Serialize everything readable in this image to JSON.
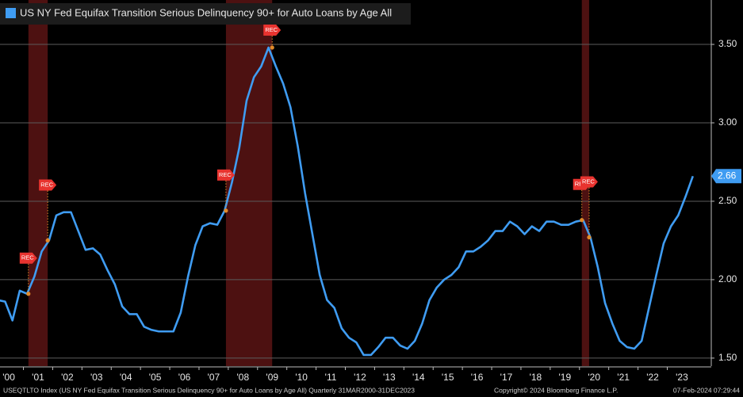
{
  "chart_data": {
    "type": "line",
    "series": [
      {
        "name": "US NY Fed Equifax Transition Serious Delinquency 90+ for Auto Loans by Age All",
        "color": "#3f9cf2",
        "x": [
          2000.125,
          2000.375,
          2000.625,
          2000.875,
          2001.125,
          2001.375,
          2001.625,
          2001.875,
          2002.125,
          2002.375,
          2002.625,
          2002.875,
          2003.125,
          2003.375,
          2003.625,
          2003.875,
          2004.125,
          2004.375,
          2004.625,
          2004.875,
          2005.125,
          2005.375,
          2005.625,
          2005.875,
          2006.125,
          2006.375,
          2006.625,
          2006.875,
          2007.125,
          2007.375,
          2007.625,
          2007.875,
          2008.125,
          2008.375,
          2008.625,
          2008.875,
          2009.125,
          2009.375,
          2009.625,
          2009.875,
          2010.125,
          2010.375,
          2010.625,
          2010.875,
          2011.125,
          2011.375,
          2011.625,
          2011.875,
          2012.125,
          2012.375,
          2012.625,
          2012.875,
          2013.125,
          2013.375,
          2013.625,
          2013.875,
          2014.125,
          2014.375,
          2014.625,
          2014.875,
          2015.125,
          2015.375,
          2015.625,
          2015.875,
          2016.125,
          2016.375,
          2016.625,
          2016.875,
          2017.125,
          2017.375,
          2017.625,
          2017.875,
          2018.125,
          2018.375,
          2018.625,
          2018.875,
          2019.125,
          2019.375,
          2019.625,
          2019.875,
          2020.125,
          2020.375,
          2020.625,
          2020.875,
          2021.125,
          2021.375,
          2021.625,
          2021.875,
          2022.125,
          2022.375,
          2022.625,
          2022.875,
          2023.125,
          2023.375,
          2023.625,
          2023.875
        ],
        "values": [
          1.87,
          1.86,
          1.74,
          1.93,
          1.91,
          2.02,
          2.18,
          2.25,
          2.41,
          2.43,
          2.43,
          2.31,
          2.19,
          2.2,
          2.16,
          2.06,
          1.97,
          1.83,
          1.78,
          1.78,
          1.7,
          1.68,
          1.67,
          1.67,
          1.67,
          1.79,
          2.02,
          2.22,
          2.34,
          2.36,
          2.35,
          2.44,
          2.62,
          2.84,
          3.14,
          3.29,
          3.36,
          3.48,
          3.36,
          3.25,
          3.1,
          2.85,
          2.55,
          2.29,
          2.03,
          1.87,
          1.82,
          1.69,
          1.63,
          1.6,
          1.52,
          1.52,
          1.57,
          1.63,
          1.63,
          1.58,
          1.56,
          1.61,
          1.72,
          1.87,
          1.95,
          2.0,
          2.03,
          2.08,
          2.18,
          2.18,
          2.21,
          2.25,
          2.31,
          2.31,
          2.37,
          2.34,
          2.29,
          2.34,
          2.31,
          2.37,
          2.37,
          2.35,
          2.35,
          2.37,
          2.38,
          2.27,
          2.08,
          1.85,
          1.72,
          1.61,
          1.57,
          1.56,
          1.61,
          1.82,
          2.03,
          2.23,
          2.34,
          2.41,
          2.53,
          2.66
        ]
      }
    ],
    "recessions": [
      [
        2001.17,
        2001.83
      ],
      [
        2007.92,
        2009.5
      ],
      [
        2020.08,
        2020.33
      ]
    ],
    "recession_label": "REC",
    "xlim": [
      2000.2,
      2024.45
    ],
    "xticks": [
      {
        "value": 2000.5,
        "label": "'00"
      },
      {
        "value": 2001.5,
        "label": "'01"
      },
      {
        "value": 2002.5,
        "label": "'02"
      },
      {
        "value": 2003.5,
        "label": "'03"
      },
      {
        "value": 2004.5,
        "label": "'04"
      },
      {
        "value": 2005.5,
        "label": "'05"
      },
      {
        "value": 2006.5,
        "label": "'06"
      },
      {
        "value": 2007.5,
        "label": "'07"
      },
      {
        "value": 2008.5,
        "label": "'08"
      },
      {
        "value": 2009.5,
        "label": "'09"
      },
      {
        "value": 2010.5,
        "label": "'10"
      },
      {
        "value": 2011.5,
        "label": "'11"
      },
      {
        "value": 2012.5,
        "label": "'12"
      },
      {
        "value": 2013.5,
        "label": "'13"
      },
      {
        "value": 2014.5,
        "label": "'14"
      },
      {
        "value": 2015.5,
        "label": "'15"
      },
      {
        "value": 2016.5,
        "label": "'16"
      },
      {
        "value": 2017.5,
        "label": "'17"
      },
      {
        "value": 2018.5,
        "label": "'18"
      },
      {
        "value": 2019.5,
        "label": "'19"
      },
      {
        "value": 2020.5,
        "label": "'20"
      },
      {
        "value": 2021.5,
        "label": "'21"
      },
      {
        "value": 2022.5,
        "label": "'22"
      },
      {
        "value": 2023.5,
        "label": "'23"
      }
    ],
    "ylim": [
      1.449,
      3.783
    ],
    "yticks": [
      {
        "value": 1.5,
        "label": "1.50"
      },
      {
        "value": 2,
        "label": "2.00"
      },
      {
        "value": 2.5,
        "label": "2.50"
      },
      {
        "value": 3,
        "label": "3.00"
      },
      {
        "value": 3.5,
        "label": "3.50"
      }
    ],
    "grid": true,
    "footer": {
      "source": "USEQTLTO Index (US NY Fed Equifax Transition Serious Delinquency 90+ for Auto Loans by Age All)  Quarterly 31MAR2000-31DEC2023",
      "copyright": "Copyright© 2024 Bloomberg Finance L.P.",
      "timestamp": "07-Feb-2024 07:29:44"
    }
  }
}
